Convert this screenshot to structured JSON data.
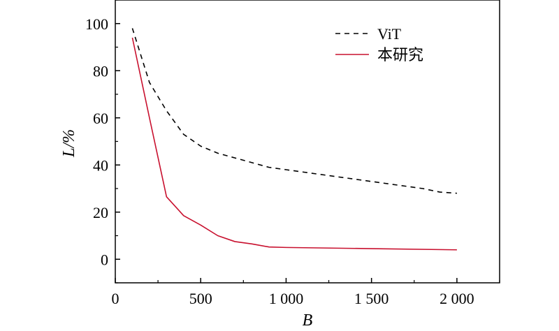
{
  "chart_data": {
    "type": "line",
    "title": "",
    "xlabel": "B",
    "ylabel": "L/%",
    "xlim": [
      0,
      2250
    ],
    "ylim": [
      -10,
      110
    ],
    "x_ticks": [
      0,
      500,
      1000,
      1500,
      2000
    ],
    "x_tick_labels": [
      "0",
      "500",
      "1 000",
      "1 500",
      "2 000"
    ],
    "y_ticks": [
      0,
      20,
      40,
      60,
      80,
      100
    ],
    "y_tick_labels": [
      "0",
      "20",
      "40",
      "60",
      "80",
      "100"
    ],
    "grid": false,
    "legend_position": "top-right",
    "series": [
      {
        "name": "ViT",
        "style": "dashed",
        "color": "#000000",
        "x": [
          100,
          200,
          300,
          400,
          500,
          600,
          700,
          800,
          900,
          1000,
          1100,
          1200,
          1300,
          1400,
          1500,
          1600,
          1700,
          1800,
          1900,
          2000
        ],
        "y": [
          98,
          75,
          63,
          53,
          48,
          45,
          43,
          41,
          39,
          38,
          37,
          36,
          35,
          34,
          33,
          32,
          31,
          30,
          28.5,
          28
        ]
      },
      {
        "name": "本研究",
        "style": "solid",
        "color": "#c8102e",
        "x": [
          100,
          200,
          300,
          400,
          500,
          600,
          700,
          800,
          900,
          1000,
          1500,
          2000
        ],
        "y": [
          94,
          60,
          26.5,
          18.5,
          14.5,
          10,
          7.5,
          6.5,
          5.2,
          5,
          4.5,
          4
        ]
      }
    ]
  }
}
